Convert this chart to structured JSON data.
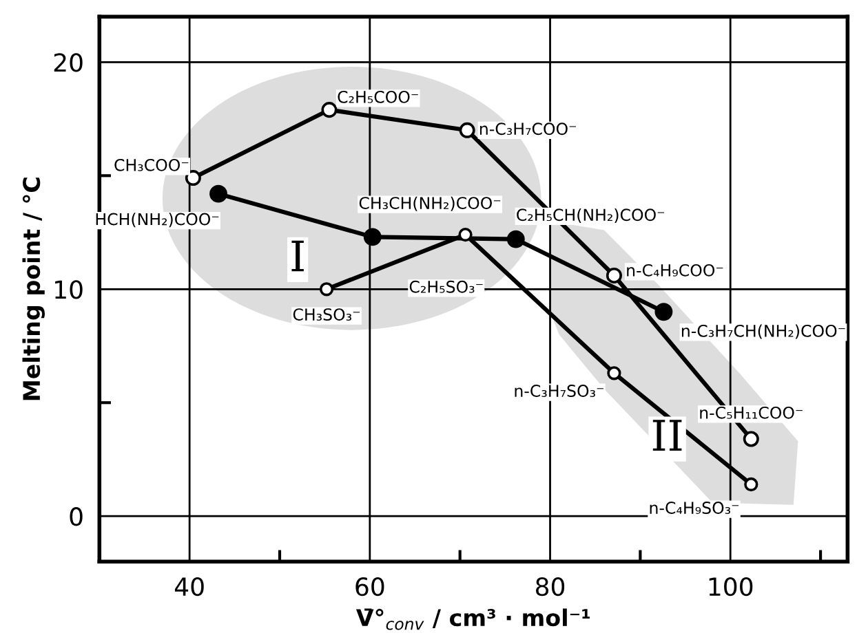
{
  "chart_data": {
    "type": "line",
    "xlabel": "V̄°$_{conv}$ / cm³ · mol⁻¹",
    "ylabel": "Melting point / °C",
    "series": [
      {
        "color": "#000000",
        "x": [
          40.4,
          55.5,
          70.8,
          87.1,
          102.3
        ],
        "values": [
          14.9,
          17.9,
          17.0,
          10.6,
          3.4
        ]
      },
      {
        "color": "#000000",
        "x": [
          43.2,
          60.3,
          76.2,
          92.6
        ],
        "values": [
          14.2,
          12.3,
          12.2,
          9.0
        ]
      },
      {
        "color": "#000000",
        "x": [
          55.2,
          70.6,
          87.1,
          102.3
        ],
        "values": [
          10.0,
          12.4,
          6.3,
          1.4
        ]
      }
    ],
    "annotations": [
      {
        "text": "CH₃COO⁻",
        "x": 40.4,
        "y": 14.9
      },
      {
        "text": "C₂H₅COO⁻",
        "x": 55.5,
        "y": 17.9
      },
      {
        "text": "n-C₃H₇COO⁻",
        "x": 70.8,
        "y": 17.0
      },
      {
        "text": "n-C₄H₉COO⁻",
        "x": 87.1,
        "y": 10.6
      },
      {
        "text": "n-C₅H₁₁COO⁻",
        "x": 102.3,
        "y": 3.4
      },
      {
        "text": "HCH(NH₂)COO⁻",
        "x": 43.2,
        "y": 14.2
      },
      {
        "text": "CH₃CH(NH₂)COO⁻",
        "x": 60.3,
        "y": 12.3
      },
      {
        "text": "C₂H₅CH(NH₂)COO⁻",
        "x": 76.2,
        "y": 12.2
      },
      {
        "text": "n-C₃H₇CH(NH₂)COO⁻",
        "x": 92.6,
        "y": 9.0
      },
      {
        "text": "CH₃SO₃⁻",
        "x": 55.2,
        "y": 10.0
      },
      {
        "text": "C₂H₅SO₃⁻",
        "x": 70.6,
        "y": 12.4
      },
      {
        "text": "n-C₃H₇SO₃⁻",
        "x": 87.1,
        "y": 6.3
      },
      {
        "text": "n-C₄H₉SO₃⁻",
        "x": 102.3,
        "y": 1.4
      },
      {
        "text": "I",
        "x": 52,
        "y": 11.3
      },
      {
        "text": "II",
        "x": 93,
        "y": 3.4
      }
    ],
    "xlim": [
      30,
      113
    ],
    "ylim": [
      -2,
      22
    ],
    "xticks": [
      40,
      {
        "value": 50,
        "label": null
      },
      60,
      {
        "value": 70,
        "label": null
      },
      80,
      {
        "value": 90,
        "label": null
      },
      100,
      {
        "value": 110,
        "label": null
      }
    ],
    "yticks": [
      0,
      {
        "value": 5,
        "label": null
      },
      10,
      {
        "value": 15,
        "label": null
      },
      20
    ],
    "grid": true,
    "marker": "circle",
    "line_style": "solid"
  }
}
